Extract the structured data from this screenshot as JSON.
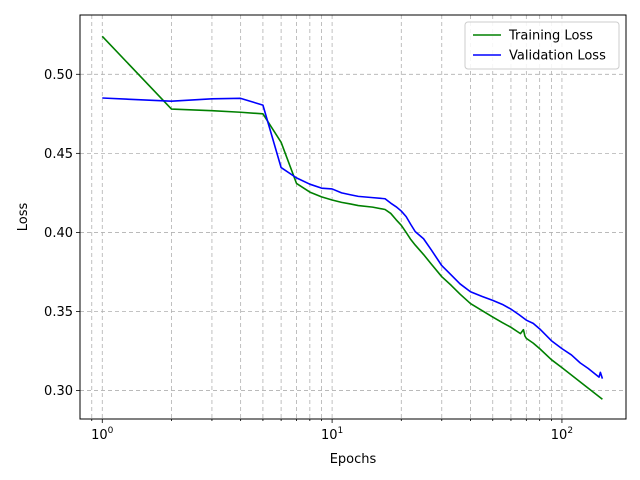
{
  "chart_data": {
    "type": "line",
    "title": "",
    "xlabel": "Epochs",
    "ylabel": "Loss",
    "xscale": "log",
    "xlim": [
      0.8,
      190
    ],
    "ylim": [
      0.282,
      0.5375
    ],
    "x_tick_values": [
      1,
      10,
      100
    ],
    "x_tick_labels": [
      "10^0",
      "10^1",
      "10^2"
    ],
    "y_ticks": [
      0.3,
      0.35,
      0.4,
      0.45,
      0.5
    ],
    "y_tick_labels": [
      "0.30",
      "0.35",
      "0.40",
      "0.45",
      "0.50"
    ],
    "grid": "major and minor, dashed",
    "legend_position": "top-right",
    "series": [
      {
        "name": "Training Loss",
        "color": "#008000",
        "x": [
          1,
          2,
          3,
          4,
          5,
          6,
          7,
          8,
          9,
          10,
          11,
          12,
          13,
          15,
          17,
          18,
          19,
          20,
          21,
          22,
          23,
          25,
          27,
          30,
          33,
          36,
          40,
          45,
          50,
          55,
          60,
          66,
          68,
          69,
          70,
          75,
          80,
          90,
          100,
          120,
          150
        ],
        "values": [
          0.524,
          0.478,
          0.477,
          0.476,
          0.475,
          0.457,
          0.431,
          0.4255,
          0.4225,
          0.4205,
          0.419,
          0.418,
          0.417,
          0.416,
          0.4145,
          0.412,
          0.408,
          0.4045,
          0.4,
          0.3955,
          0.392,
          0.386,
          0.38,
          0.372,
          0.3665,
          0.361,
          0.355,
          0.3505,
          0.3465,
          0.343,
          0.34,
          0.336,
          0.3385,
          0.3345,
          0.333,
          0.33,
          0.3265,
          0.3195,
          0.3145,
          0.3055,
          0.2945
        ]
      },
      {
        "name": "Validation Loss",
        "color": "#0000ff",
        "x": [
          1,
          2,
          3,
          4,
          5,
          6,
          7,
          8,
          9,
          10,
          11,
          12,
          13,
          15,
          17,
          18,
          19,
          20,
          21,
          22,
          23,
          25,
          27,
          30,
          33,
          36,
          40,
          45,
          50,
          55,
          60,
          65,
          70,
          75,
          80,
          90,
          100,
          110,
          120,
          130,
          145,
          147,
          150
        ],
        "values": [
          0.485,
          0.483,
          0.4845,
          0.4848,
          0.4805,
          0.441,
          0.4345,
          0.4305,
          0.428,
          0.4275,
          0.425,
          0.4238,
          0.4228,
          0.422,
          0.4213,
          0.4185,
          0.4162,
          0.4135,
          0.41,
          0.405,
          0.4005,
          0.396,
          0.389,
          0.379,
          0.373,
          0.3675,
          0.3625,
          0.3595,
          0.357,
          0.3545,
          0.3515,
          0.348,
          0.3445,
          0.3425,
          0.339,
          0.3315,
          0.3265,
          0.3225,
          0.3175,
          0.314,
          0.3085,
          0.3115,
          0.3075
        ]
      }
    ]
  }
}
